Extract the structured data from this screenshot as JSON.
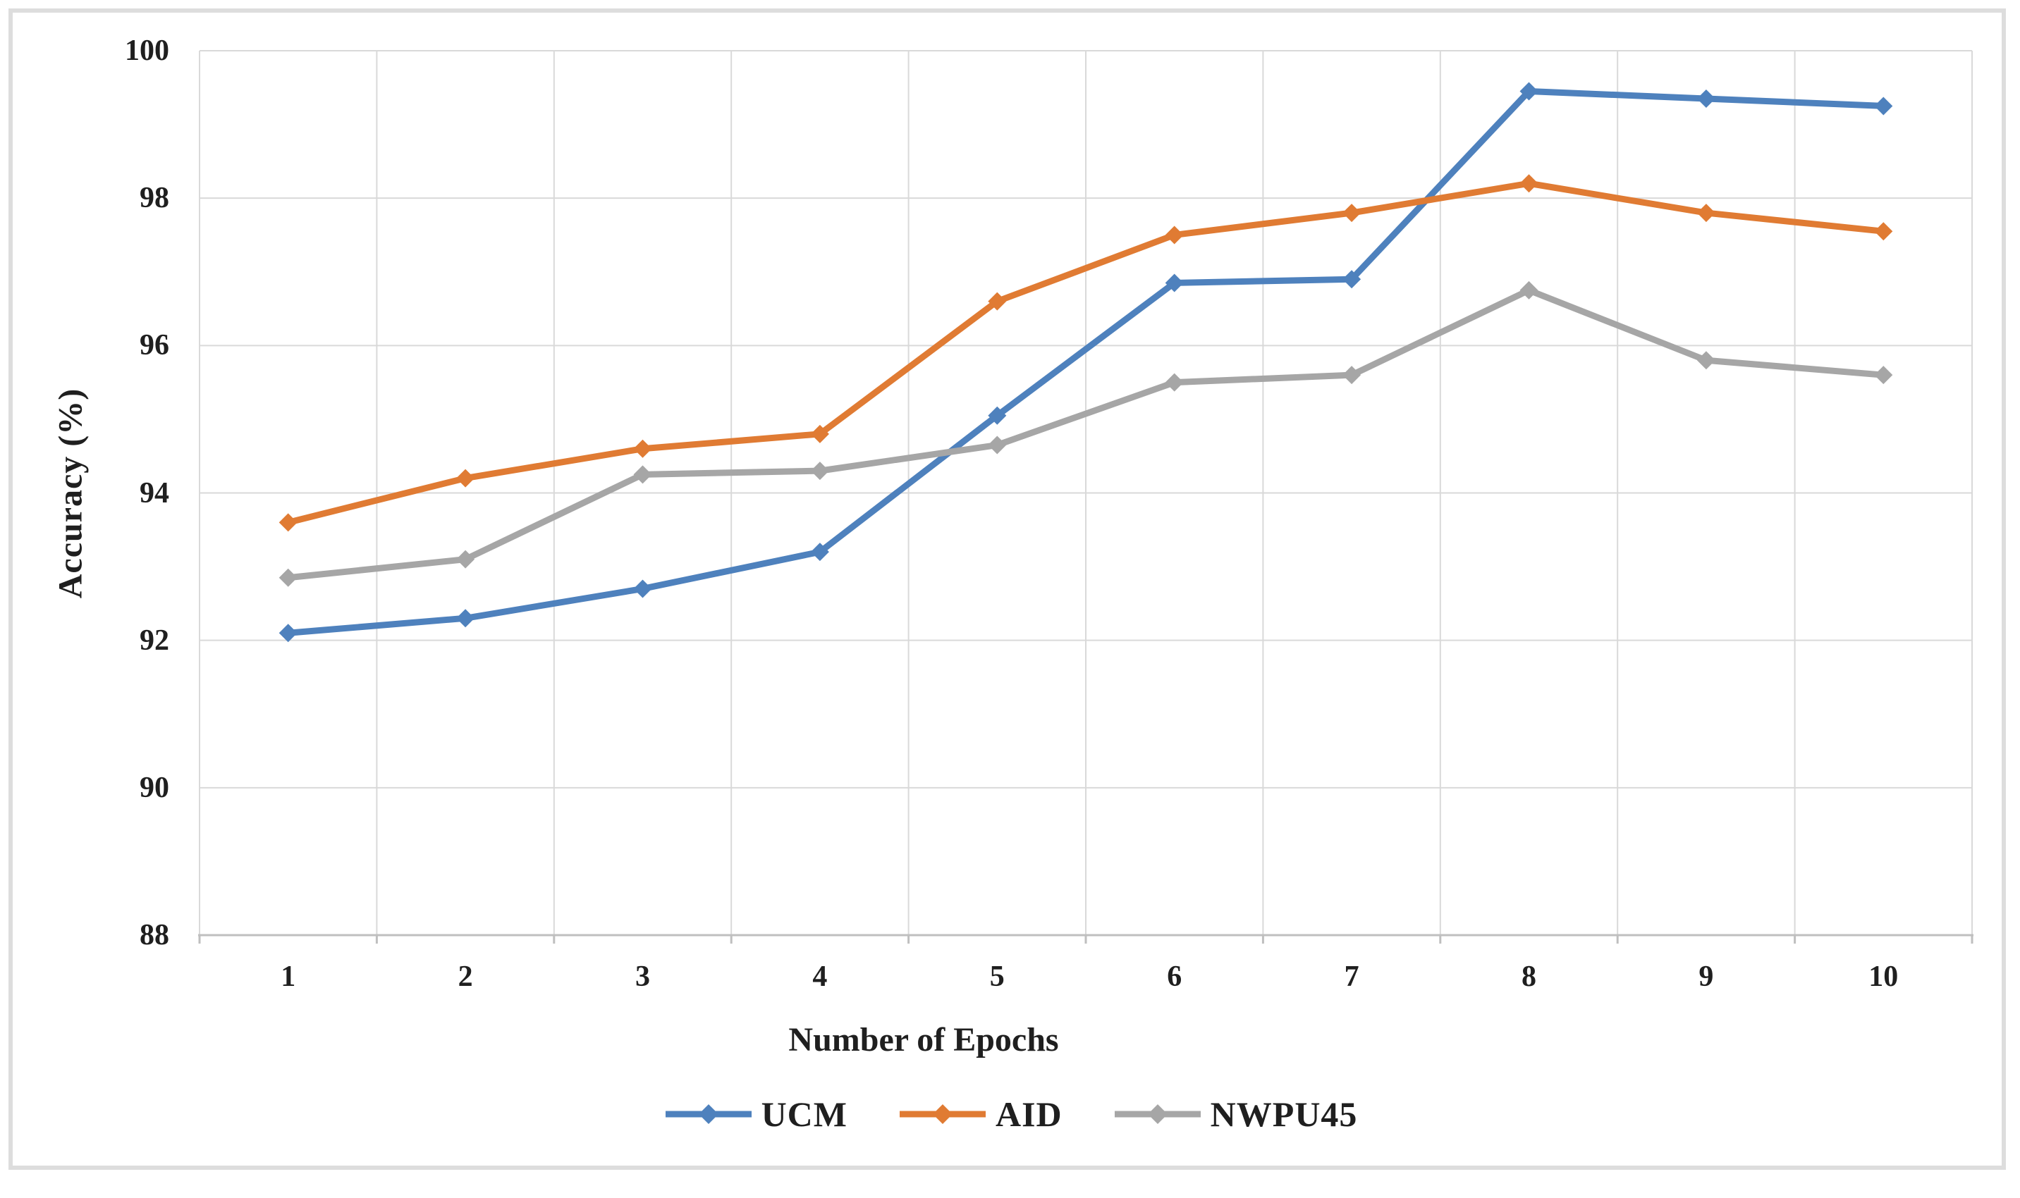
{
  "page": {
    "background": "#ffffff",
    "frame_border_color": "#dddddd",
    "gridline_color": "#d9d9d9",
    "axis_line_color": "#bfbfbf",
    "text_color": "#1f1f1f"
  },
  "chart_data": {
    "type": "line",
    "title": "",
    "xlabel": "Number of Epochs",
    "ylabel": "Accuracy (%)",
    "x": [
      1,
      2,
      3,
      4,
      5,
      6,
      7,
      8,
      9,
      10
    ],
    "x_tick_labels": [
      "1",
      "2",
      "3",
      "4",
      "5",
      "6",
      "7",
      "8",
      "9",
      "10"
    ],
    "y_ticks": [
      88,
      90,
      92,
      94,
      96,
      98,
      100
    ],
    "y_tick_labels": [
      "88",
      "90",
      "92",
      "94",
      "96",
      "98",
      "100"
    ],
    "ylim": [
      88,
      100
    ],
    "grid": "on",
    "legend_position": "bottom",
    "marker": "diamond",
    "series": [
      {
        "name": "UCM",
        "color": "#4E81BD",
        "values": [
          92.1,
          92.3,
          92.7,
          93.2,
          95.05,
          96.85,
          96.9,
          99.45,
          99.35,
          99.25
        ]
      },
      {
        "name": "AID",
        "color": "#E07B33",
        "values": [
          93.6,
          94.2,
          94.6,
          94.8,
          96.6,
          97.5,
          97.8,
          98.2,
          97.8,
          97.55
        ]
      },
      {
        "name": "NWPU45",
        "color": "#A6A6A6",
        "values": [
          92.85,
          93.1,
          94.25,
          94.3,
          94.65,
          95.5,
          95.6,
          96.75,
          95.8,
          95.6
        ]
      }
    ]
  }
}
